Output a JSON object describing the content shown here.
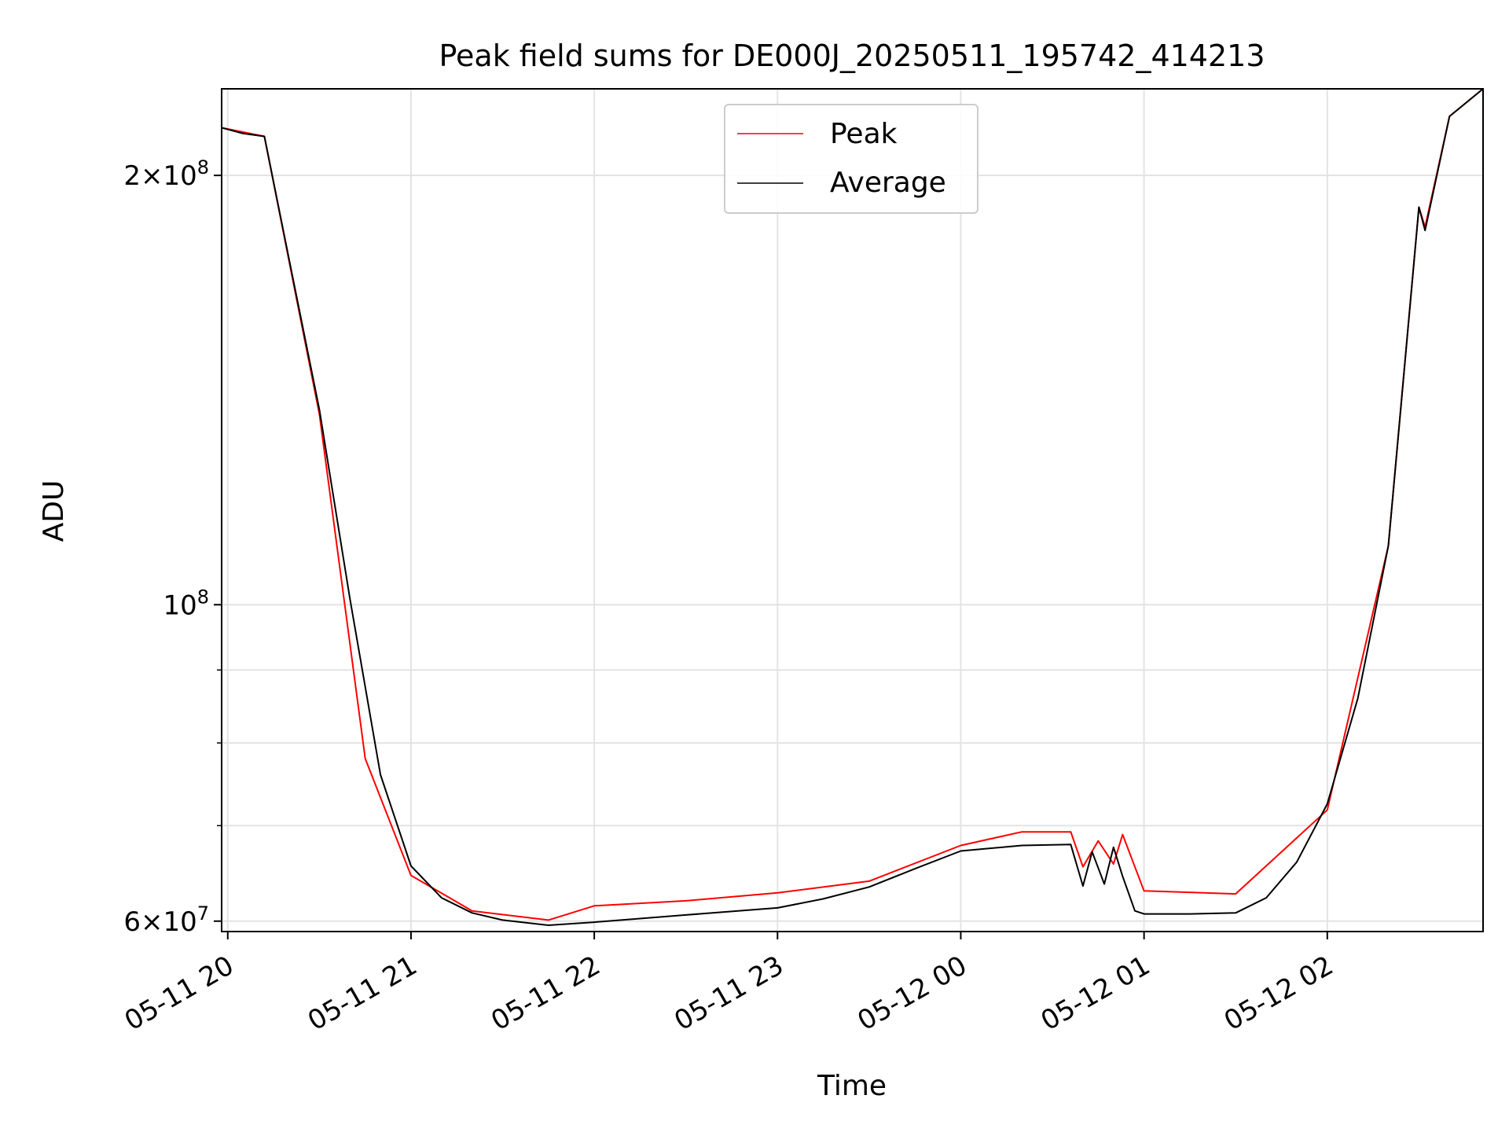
{
  "chart_data": {
    "type": "line",
    "title": "Peak field sums for DE000J_20250511_195742_414213",
    "xlabel": "Time",
    "ylabel": "ADU",
    "yscale": "log",
    "ylim": [
      59000000,
      230000000
    ],
    "xlim": [
      "05-11 19:58",
      "05-12 02:51"
    ],
    "grid": true,
    "legend": "upper center",
    "x_ticks": [
      "05-11 20",
      "05-11 21",
      "05-11 22",
      "05-11 23",
      "05-12 00",
      "05-12 01",
      "05-12 02"
    ],
    "y_ticks": [
      {
        "value": 60000000,
        "mantissa": "6×",
        "exponent": "7"
      },
      {
        "value": 100000000,
        "mantissa": "",
        "exponent": "8"
      },
      {
        "value": 200000000,
        "mantissa": "2×",
        "exponent": "8"
      }
    ],
    "series": [
      {
        "name": "Peak",
        "color": "#ff0000",
        "x": [
          "05-11 19:58",
          "05-11 20:12",
          "05-11 20:30",
          "05-11 20:45",
          "05-11 21:00",
          "05-11 21:20",
          "05-11 21:45",
          "05-11 22:00",
          "05-11 22:30",
          "05-11 23:00",
          "05-11 23:30",
          "05-12 00:00",
          "05-12 00:20",
          "05-12 00:36",
          "05-12 00:40",
          "05-12 00:45",
          "05-12 00:50",
          "05-12 00:53",
          "05-12 01:00",
          "05-12 01:30",
          "05-12 02:00",
          "05-12 02:20",
          "05-12 02:30",
          "05-12 02:32",
          "05-12 02:40",
          "05-12 02:51"
        ],
        "y": [
          216000000,
          213000000,
          136000000,
          78000000,
          64600000,
          61000000,
          60100000,
          61500000,
          62000000,
          62800000,
          64000000,
          67800000,
          69300000,
          69300000,
          65500000,
          68300000,
          65800000,
          69000000,
          63000000,
          62700000,
          71800000,
          110000000,
          190000000,
          184000000,
          220000000,
          230000000
        ]
      },
      {
        "name": "Average",
        "color": "#000000",
        "x": [
          "05-11 19:58",
          "05-11 20:05",
          "05-11 20:12",
          "05-11 20:20",
          "05-11 20:30",
          "05-11 20:40",
          "05-11 20:50",
          "05-11 21:00",
          "05-11 21:10",
          "05-11 21:20",
          "05-11 21:30",
          "05-11 21:45",
          "05-11 22:00",
          "05-11 22:30",
          "05-11 23:00",
          "05-11 23:15",
          "05-11 23:30",
          "05-11 23:45",
          "05-12 00:00",
          "05-12 00:20",
          "05-12 00:36",
          "05-12 00:40",
          "05-12 00:43",
          "05-12 00:47",
          "05-12 00:50",
          "05-12 00:53",
          "05-12 00:57",
          "05-12 01:00",
          "05-12 01:15",
          "05-12 01:30",
          "05-12 01:40",
          "05-12 01:50",
          "05-12 02:00",
          "05-12 02:10",
          "05-12 02:20",
          "05-12 02:30",
          "05-12 02:32",
          "05-12 02:40",
          "05-12 02:51"
        ],
        "y": [
          216000000,
          214000000,
          213000000,
          175000000,
          137000000,
          101000000,
          76000000,
          65600000,
          62300000,
          60800000,
          60100000,
          59600000,
          59900000,
          60600000,
          61300000,
          62200000,
          63400000,
          65300000,
          67200000,
          67800000,
          67900000,
          63500000,
          67100000,
          63700000,
          67600000,
          64500000,
          61000000,
          60700000,
          60700000,
          60800000,
          62300000,
          66000000,
          72500000,
          86000000,
          110000000,
          190000000,
          183000000,
          220000000,
          230000000
        ]
      }
    ]
  }
}
